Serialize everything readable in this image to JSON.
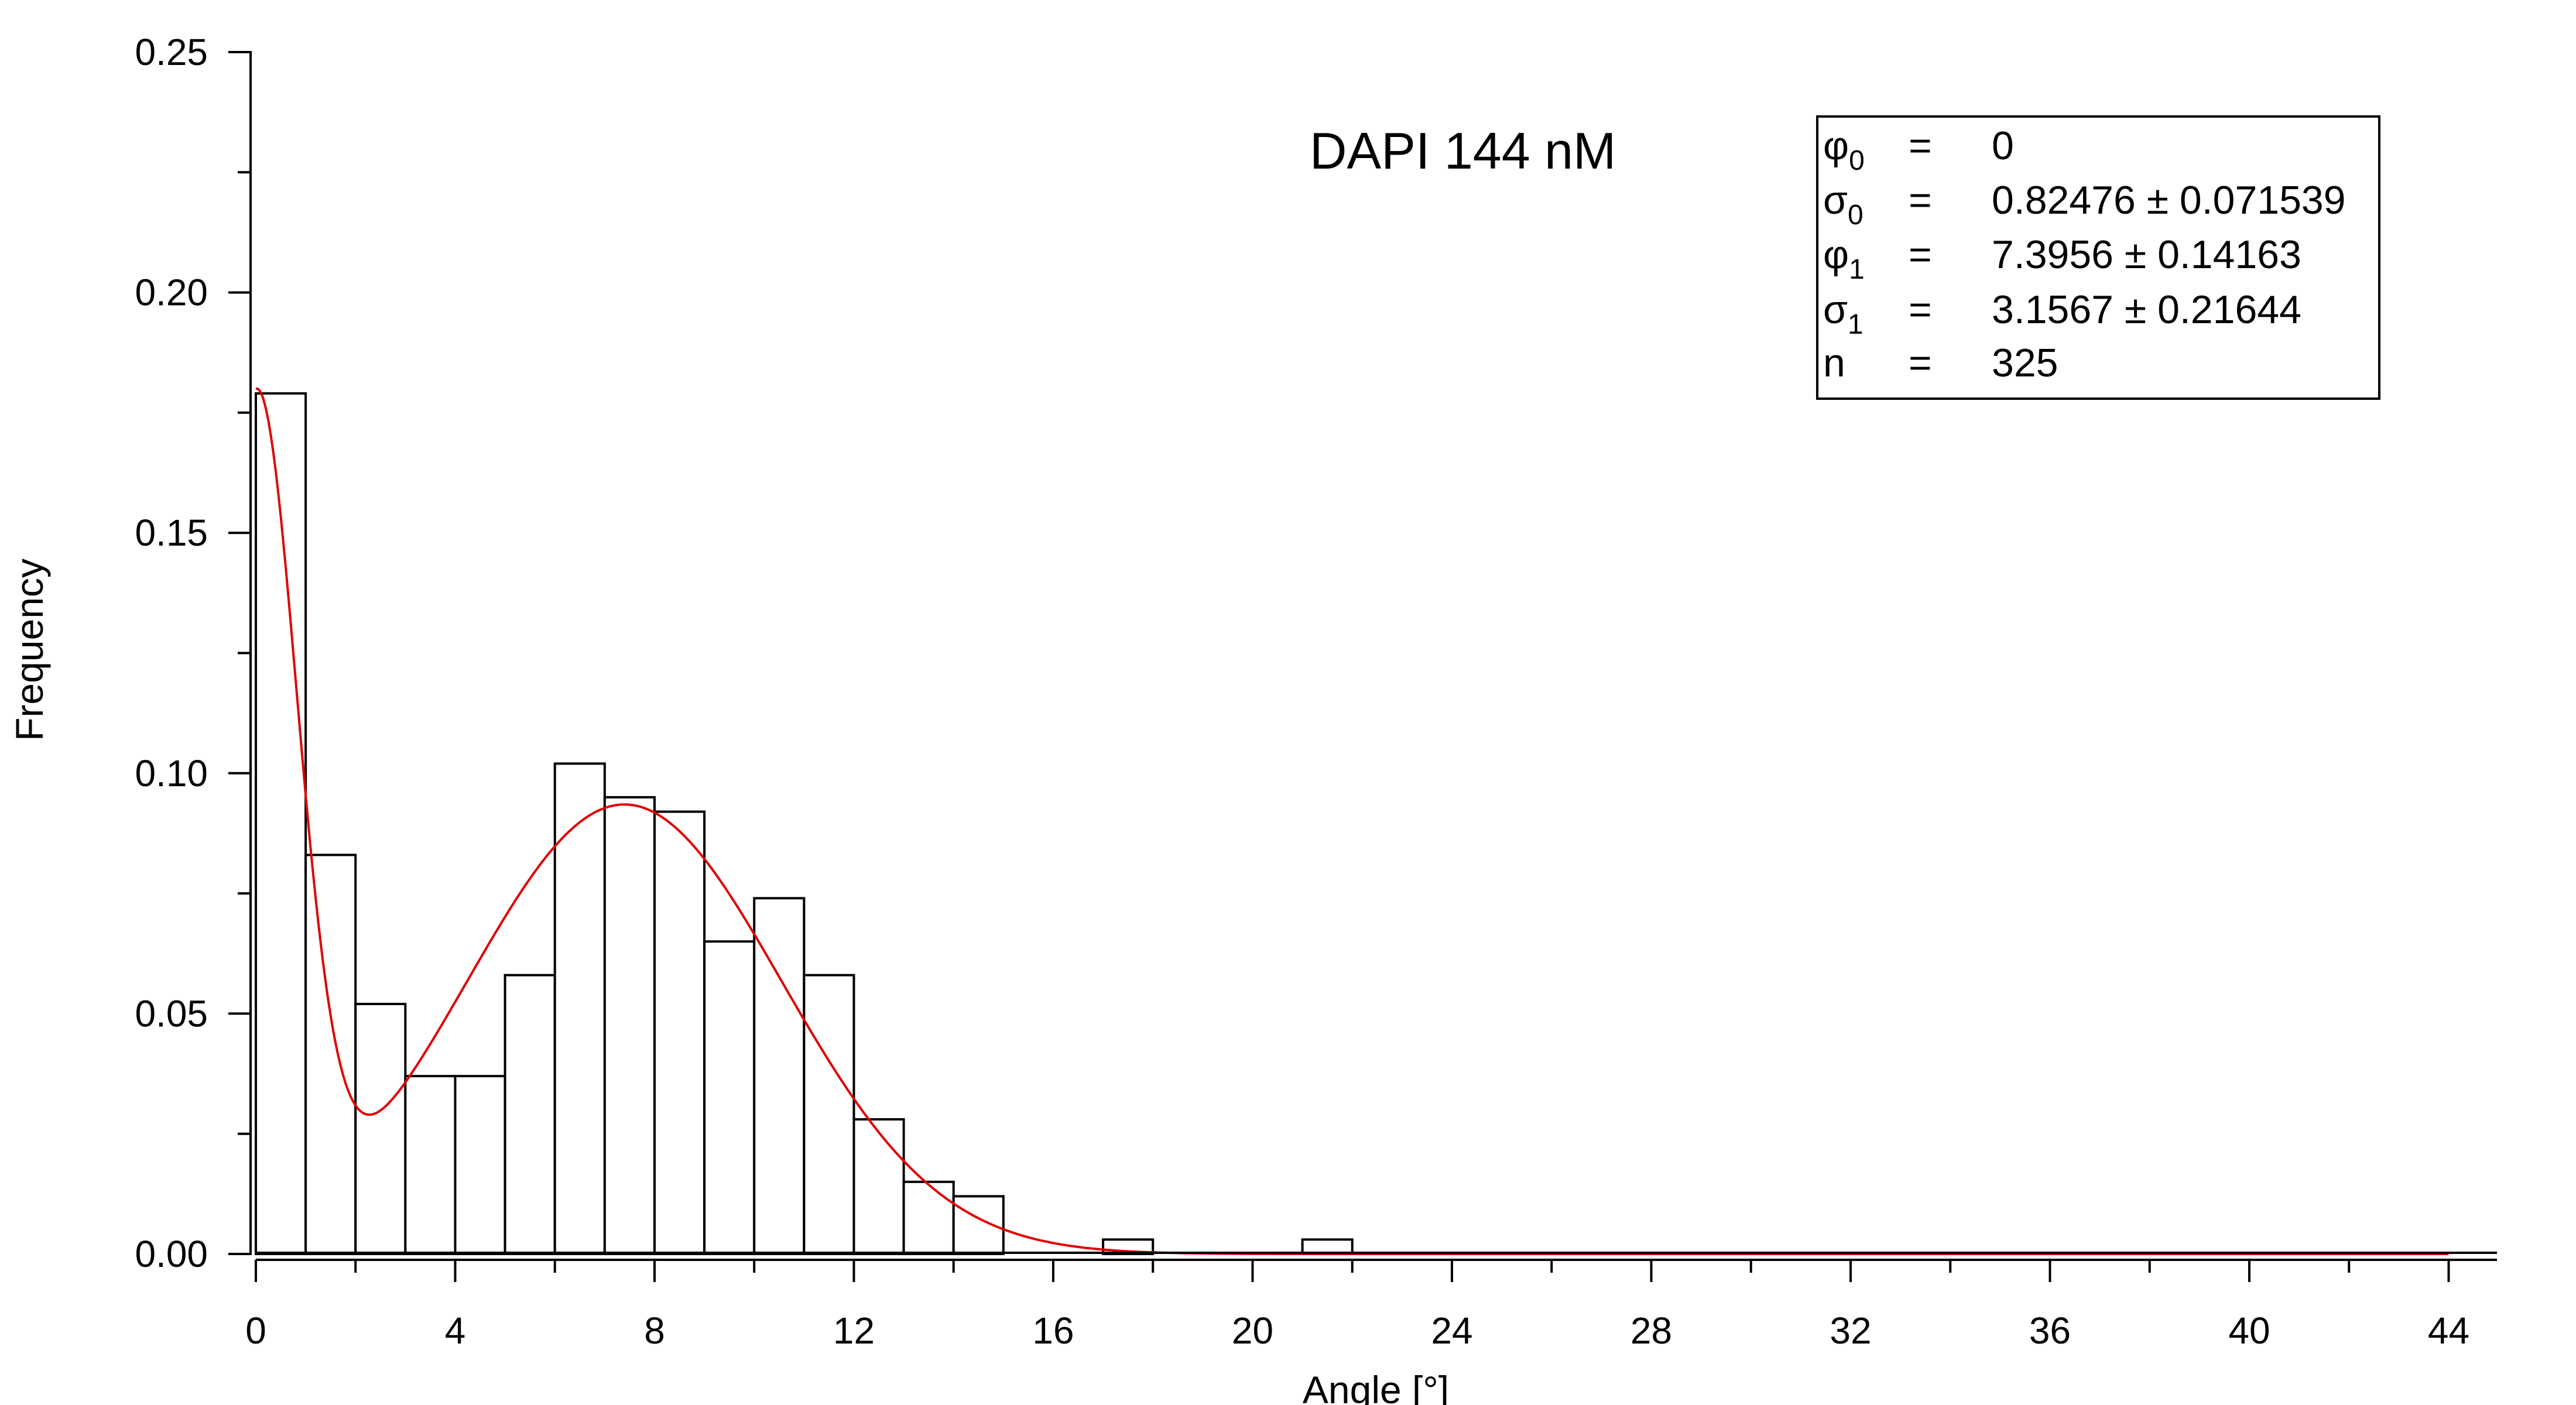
{
  "chart_data": {
    "type": "bar",
    "title": "DAPI 144 nM",
    "xlabel": "Angle [°]",
    "ylabel": "Frequency",
    "xlim": [
      0,
      45
    ],
    "ylim": [
      0,
      0.25
    ],
    "x_ticks": [
      "0",
      "4",
      "8",
      "12",
      "16",
      "20",
      "24",
      "28",
      "32",
      "36",
      "40",
      "44"
    ],
    "y_ticks": [
      "0.00",
      "0.05",
      "0.10",
      "0.15",
      "0.20",
      "0.25"
    ],
    "bin_width": 1,
    "bins": [
      {
        "start": 0,
        "value": 0.179
      },
      {
        "start": 1,
        "value": 0.083
      },
      {
        "start": 2,
        "value": 0.052
      },
      {
        "start": 3,
        "value": 0.037
      },
      {
        "start": 4,
        "value": 0.037
      },
      {
        "start": 5,
        "value": 0.058
      },
      {
        "start": 6,
        "value": 0.102
      },
      {
        "start": 7,
        "value": 0.095
      },
      {
        "start": 8,
        "value": 0.092
      },
      {
        "start": 9,
        "value": 0.065
      },
      {
        "start": 10,
        "value": 0.074
      },
      {
        "start": 11,
        "value": 0.058
      },
      {
        "start": 12,
        "value": 0.028
      },
      {
        "start": 13,
        "value": 0.015
      },
      {
        "start": 14,
        "value": 0.012
      },
      {
        "start": 15,
        "value": 0.0
      },
      {
        "start": 16,
        "value": 0.0
      },
      {
        "start": 17,
        "value": 0.003
      },
      {
        "start": 18,
        "value": 0.0
      },
      {
        "start": 19,
        "value": 0.0
      },
      {
        "start": 20,
        "value": 0.0
      },
      {
        "start": 21,
        "value": 0.003
      }
    ],
    "fit": {
      "phi0": 0,
      "sigma0": 0.82476,
      "phi1": 7.3956,
      "sigma1": 3.1567,
      "amp0": 0.174,
      "amp1": 0.0935,
      "color": "#e00000"
    },
    "bar_fill": "#ffffff",
    "bar_stroke": "#000000",
    "grid": false
  },
  "fit_box": {
    "rows": [
      {
        "sym": "φ",
        "sub": "0",
        "eq": "=",
        "val": "0"
      },
      {
        "sym": "σ",
        "sub": "0",
        "eq": "=",
        "val": "0.82476 ± 0.071539"
      },
      {
        "sym": "φ",
        "sub": "1",
        "eq": "=",
        "val": "7.3956 ± 0.14163"
      },
      {
        "sym": "σ",
        "sub": "1",
        "eq": "=",
        "val": "3.1567 ± 0.21644"
      },
      {
        "sym": "n",
        "sub": "",
        "eq": "=",
        "val": "325"
      }
    ]
  }
}
